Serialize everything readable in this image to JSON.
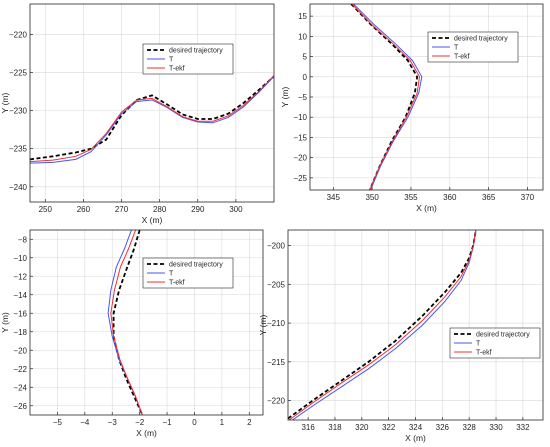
{
  "colors": {
    "desired": "#000000",
    "T": "#4a55ee",
    "T_ekf": "#ee3030",
    "grid": "#d9d9d9",
    "axis": "#262626"
  },
  "chart_data": [
    {
      "type": "line",
      "xlabel": "X (m)",
      "ylabel": "Y (m)",
      "xlim": [
        246,
        310
      ],
      "ylim": [
        -242,
        -216
      ],
      "xticks": [
        250,
        260,
        270,
        280,
        290,
        300
      ],
      "yticks": [
        -240,
        -235,
        -230,
        -225,
        -220
      ],
      "xtick_labels": [
        "250",
        "260",
        "270",
        "280",
        "290",
        "300"
      ],
      "ytick_labels": [
        "−240",
        "−235",
        "−230",
        "−225",
        "−220"
      ],
      "grid": true,
      "legend_position": "top-right",
      "series": [
        {
          "name": "desired trajectory",
          "style": "dashed",
          "color": "#000000",
          "x": [
            246,
            252,
            258,
            262,
            266,
            270,
            274,
            278,
            282,
            286,
            290,
            294,
            298,
            302,
            306,
            310
          ],
          "y": [
            -236.4,
            -236.0,
            -235.5,
            -235.0,
            -233.8,
            -230.6,
            -228.6,
            -228.0,
            -229.2,
            -230.5,
            -231.1,
            -231.1,
            -230.4,
            -229.0,
            -227.3,
            -225.5
          ]
        },
        {
          "name": "T",
          "style": "solid",
          "color": "#4a55ee",
          "x": [
            246,
            252,
            258,
            262,
            266,
            270,
            274,
            278,
            282,
            286,
            290,
            294,
            298,
            302,
            306,
            310
          ],
          "y": [
            -236.9,
            -236.8,
            -236.4,
            -235.4,
            -233.2,
            -230.4,
            -228.8,
            -228.6,
            -229.6,
            -230.9,
            -231.5,
            -231.6,
            -230.9,
            -229.5,
            -227.6,
            -225.5
          ]
        },
        {
          "name": "T-ekf",
          "style": "solid",
          "color": "#ee3030",
          "x": [
            246,
            252,
            258,
            262,
            266,
            270,
            274,
            278,
            282,
            286,
            290,
            294,
            298,
            302,
            306,
            310
          ],
          "y": [
            -236.7,
            -236.5,
            -236.0,
            -235.1,
            -233.0,
            -230.2,
            -228.6,
            -228.4,
            -229.5,
            -230.8,
            -231.4,
            -231.4,
            -230.7,
            -229.3,
            -227.5,
            -225.4
          ]
        }
      ]
    },
    {
      "type": "line",
      "xlabel": "X (m)",
      "ylabel": "Y (m)",
      "xlim": [
        342,
        372
      ],
      "ylim": [
        -28,
        18
      ],
      "xticks": [
        345,
        350,
        355,
        360,
        365,
        370
      ],
      "yticks": [
        -25,
        -20,
        -15,
        -10,
        -5,
        0,
        5,
        10,
        15
      ],
      "xtick_labels": [
        "345",
        "350",
        "355",
        "360",
        "365",
        "370"
      ],
      "ytick_labels": [
        "−25",
        "−20",
        "−15",
        "−10",
        "−5",
        "0",
        "5",
        "10",
        "15"
      ],
      "grid": true,
      "legend_position": "top-right",
      "series": [
        {
          "name": "desired trajectory",
          "style": "dashed",
          "color": "#000000",
          "x": [
            347.3,
            349.8,
            352.6,
            354.6,
            355.8,
            355.5,
            354.3,
            352.5,
            351.0,
            349.7
          ],
          "y": [
            18,
            13,
            8,
            4,
            0,
            -4,
            -10,
            -16,
            -22,
            -28
          ]
        },
        {
          "name": "T",
          "style": "solid",
          "color": "#4a55ee",
          "x": [
            347.6,
            350.2,
            353.1,
            355.2,
            356.4,
            356.0,
            354.6,
            352.7,
            351.1,
            349.8
          ],
          "y": [
            18,
            13,
            8,
            4,
            0,
            -4,
            -10,
            -16,
            -22,
            -28
          ]
        },
        {
          "name": "T-ekf",
          "style": "solid",
          "color": "#ee3030",
          "x": [
            347.4,
            349.9,
            352.8,
            354.9,
            356.1,
            355.8,
            354.4,
            352.6,
            351.0,
            349.7
          ],
          "y": [
            18,
            13,
            8,
            4,
            0,
            -4,
            -10,
            -16,
            -22,
            -28
          ]
        }
      ]
    },
    {
      "type": "line",
      "xlabel": "X (m)",
      "ylabel": "Y (m)",
      "xlim": [
        -6,
        2.5
      ],
      "ylim": [
        -27,
        -7
      ],
      "xticks": [
        -5,
        -4,
        -3,
        -2,
        -1,
        0,
        1,
        2
      ],
      "yticks": [
        -26,
        -24,
        -22,
        -20,
        -18,
        -16,
        -14,
        -12,
        -10,
        -8
      ],
      "xtick_labels": [
        "−5",
        "−4",
        "−3",
        "−2",
        "−1",
        "0",
        "1",
        "2"
      ],
      "ytick_labels": [
        "−26",
        "−24",
        "−22",
        "−20",
        "−18",
        "−16",
        "−14",
        "−12",
        "−10",
        "−8"
      ],
      "grid": true,
      "legend_position": "top-right",
      "series": [
        {
          "name": "desired trajectory",
          "style": "dashed",
          "color": "#000000",
          "x": [
            -2.0,
            -2.2,
            -2.45,
            -2.75,
            -2.95,
            -2.95,
            -2.75,
            -2.5,
            -2.2,
            -1.9
          ],
          "y": [
            -7,
            -9,
            -11,
            -13.5,
            -16,
            -18.5,
            -21,
            -23,
            -25,
            -27
          ]
        },
        {
          "name": "T",
          "style": "solid",
          "color": "#4a55ee",
          "x": [
            -2.3,
            -2.55,
            -2.85,
            -3.05,
            -3.15,
            -3.0,
            -2.75,
            -2.45,
            -2.15,
            -1.9
          ],
          "y": [
            -7,
            -9,
            -11,
            -13.5,
            -16,
            -18.5,
            -21,
            -23,
            -25,
            -27
          ]
        },
        {
          "name": "T-ekf",
          "style": "solid",
          "color": "#ee3030",
          "x": [
            -2.15,
            -2.4,
            -2.7,
            -2.92,
            -3.05,
            -2.95,
            -2.72,
            -2.45,
            -2.15,
            -1.9
          ],
          "y": [
            -7,
            -9,
            -11,
            -13.5,
            -16,
            -18.5,
            -21,
            -23,
            -25,
            -27
          ]
        }
      ]
    },
    {
      "type": "line",
      "xlabel": "X (m)",
      "ylabel": "Y (m)",
      "xlim": [
        314.5,
        333.5
      ],
      "ylim": [
        -222.5,
        -198
      ],
      "xticks": [
        316,
        318,
        320,
        322,
        324,
        326,
        328,
        330,
        332
      ],
      "yticks": [
        -220,
        -215,
        -210,
        -205,
        -200
      ],
      "xtick_labels": [
        "316",
        "318",
        "320",
        "322",
        "324",
        "326",
        "328",
        "330",
        "332"
      ],
      "ytick_labels": [
        "−220",
        "−215",
        "−210",
        "−205",
        "−200"
      ],
      "grid": true,
      "legend_position": "center-right",
      "series": [
        {
          "name": "desired trajectory",
          "style": "dashed",
          "color": "#000000",
          "x": [
            314.5,
            316.5,
            318.5,
            320.5,
            322.5,
            324.5,
            326.2,
            327.4,
            328.0,
            328.3,
            328.5
          ],
          "y": [
            -222.3,
            -219.8,
            -217.4,
            -215.0,
            -212.3,
            -209.1,
            -206.0,
            -203.5,
            -201.6,
            -200.0,
            -198
          ]
        },
        {
          "name": "T",
          "style": "solid",
          "color": "#4a55ee",
          "x": [
            314.5,
            316.5,
            318.5,
            320.5,
            322.5,
            324.5,
            326.2,
            327.4,
            328.0,
            328.3,
            328.5
          ],
          "y": [
            -222.9,
            -220.5,
            -218.2,
            -215.9,
            -213.3,
            -210.3,
            -207.2,
            -204.5,
            -202.2,
            -200.2,
            -198
          ]
        },
        {
          "name": "T-ekf",
          "style": "solid",
          "color": "#ee3030",
          "x": [
            314.5,
            316.5,
            318.5,
            320.5,
            322.5,
            324.5,
            326.2,
            327.4,
            328.0,
            328.3,
            328.5
          ],
          "y": [
            -222.6,
            -220.1,
            -217.7,
            -215.4,
            -212.8,
            -209.7,
            -206.6,
            -204.0,
            -201.9,
            -200.1,
            -198
          ]
        }
      ]
    }
  ]
}
